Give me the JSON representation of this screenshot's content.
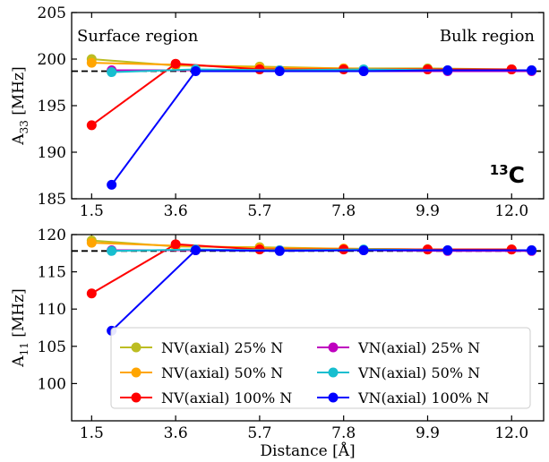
{
  "chart_data": [
    {
      "type": "line",
      "panel": "top",
      "ylabel_main": "A",
      "ylabel_sub": "33",
      "ylabel_unit": " [MHz]",
      "xlabel": "",
      "xticks": [
        "1.5",
        "3.6",
        "5.7",
        "7.8",
        "9.9",
        "12.0"
      ],
      "yticks": [
        "185",
        "190",
        "195",
        "200",
        "205"
      ],
      "xlim": [
        1.0,
        12.8
      ],
      "ylim": [
        185,
        205
      ],
      "grid": false,
      "reference_value": 198.7,
      "annotations": {
        "left": "Surface region",
        "right": "Bulk region"
      },
      "nucleus": {
        "sup": "13",
        "symbol": "C"
      },
      "series": [
        {
          "name": "NV(axial) 25% N",
          "color": "#bcbd22",
          "x": [
            1.5,
            3.6,
            5.7,
            7.8,
            9.9,
            12.0
          ],
          "y": [
            200.0,
            199.3,
            199.2,
            199.0,
            199.0,
            198.9
          ]
        },
        {
          "name": "NV(axial) 50% N",
          "color": "#ffa500",
          "x": [
            1.5,
            3.6,
            5.7,
            7.8,
            9.9,
            12.0
          ],
          "y": [
            199.6,
            199.4,
            199.1,
            199.0,
            198.9,
            198.9
          ]
        },
        {
          "name": "NV(axial) 100% N",
          "color": "#ff0000",
          "x": [
            1.5,
            3.6,
            5.7,
            7.8,
            9.9,
            12.0
          ],
          "y": [
            192.9,
            199.5,
            198.9,
            198.9,
            198.9,
            198.9
          ]
        },
        {
          "name": "VN(axial) 25% N",
          "color": "#bf00bf",
          "x": [
            2.0,
            4.1,
            6.2,
            8.3,
            10.4,
            12.5
          ],
          "y": [
            198.8,
            198.8,
            198.8,
            198.7,
            198.7,
            198.7
          ]
        },
        {
          "name": "VN(axial) 50% N",
          "color": "#17becf",
          "x": [
            2.0,
            4.1,
            6.2,
            8.3,
            10.4,
            12.5
          ],
          "y": [
            198.6,
            198.9,
            198.8,
            198.9,
            198.8,
            198.8
          ]
        },
        {
          "name": "VN(axial) 100% N",
          "color": "#0000ff",
          "x": [
            2.0,
            4.1,
            6.2,
            8.3,
            10.4,
            12.5
          ],
          "y": [
            186.5,
            198.7,
            198.7,
            198.7,
            198.8,
            198.8
          ]
        }
      ]
    },
    {
      "type": "line",
      "panel": "bottom",
      "ylabel_main": "A",
      "ylabel_sub": "11",
      "ylabel_unit": " [MHz]",
      "xlabel": "Distance [Å]",
      "xticks": [
        "1.5",
        "3.6",
        "5.7",
        "7.8",
        "9.9",
        "12.0"
      ],
      "yticks": [
        "100",
        "105",
        "110",
        "115",
        "120"
      ],
      "xlim": [
        1.0,
        12.8
      ],
      "ylim": [
        95,
        120
      ],
      "grid": false,
      "reference_value": 117.8,
      "legend_position": "lower center",
      "series": [
        {
          "name": "NV(axial) 25% N",
          "color": "#bcbd22",
          "x": [
            1.5,
            3.6,
            5.7,
            7.8,
            9.9,
            12.0
          ],
          "y": [
            119.2,
            118.4,
            118.3,
            118.1,
            118.0,
            118.0
          ]
        },
        {
          "name": "NV(axial) 50% N",
          "color": "#ffa500",
          "x": [
            1.5,
            3.6,
            5.7,
            7.8,
            9.9,
            12.0
          ],
          "y": [
            118.9,
            118.5,
            118.2,
            118.1,
            118.0,
            118.0
          ]
        },
        {
          "name": "NV(axial) 100% N",
          "color": "#ff0000",
          "x": [
            1.5,
            3.6,
            5.7,
            7.8,
            9.9,
            12.0
          ],
          "y": [
            112.1,
            118.7,
            118.0,
            118.0,
            118.0,
            118.0
          ]
        },
        {
          "name": "VN(axial) 25% N",
          "color": "#bf00bf",
          "x": [
            2.0,
            4.1,
            6.2,
            8.3,
            10.4,
            12.5
          ],
          "y": [
            117.9,
            117.9,
            117.9,
            117.9,
            117.8,
            117.8
          ]
        },
        {
          "name": "VN(axial) 50% N",
          "color": "#17becf",
          "x": [
            2.0,
            4.1,
            6.2,
            8.3,
            10.4,
            12.5
          ],
          "y": [
            117.8,
            118.0,
            117.9,
            118.0,
            117.9,
            117.9
          ]
        },
        {
          "name": "VN(axial) 100% N",
          "color": "#0000ff",
          "x": [
            2.0,
            4.1,
            6.2,
            8.3,
            10.4,
            12.5
          ],
          "y": [
            107.1,
            117.9,
            117.8,
            117.9,
            117.9,
            117.9
          ]
        }
      ]
    }
  ]
}
